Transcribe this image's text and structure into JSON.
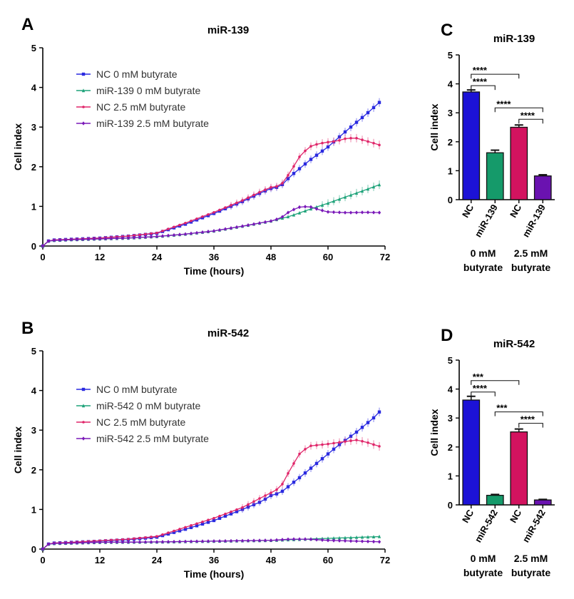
{
  "colors": {
    "nc0": "#2a2ae0",
    "mir0": "#1fa37a",
    "nc25": "#e0266a",
    "mir25": "#7a18b8",
    "bar_nc0": "#1c12d6",
    "bar_mir0": "#159a6a",
    "bar_nc25": "#d3135f",
    "bar_mir25": "#6a12b0"
  },
  "panels": {
    "A": {
      "letter": "A"
    },
    "B": {
      "letter": "B"
    },
    "C": {
      "letter": "C"
    },
    "D": {
      "letter": "D"
    }
  },
  "chart_data": [
    {
      "id": "A",
      "type": "line",
      "title": "miR-139",
      "xlabel": "Time (hours)",
      "ylabel": "Cell index",
      "xlim": [
        0,
        72
      ],
      "ylim": [
        0,
        5
      ],
      "xticks": [
        0,
        12,
        24,
        36,
        48,
        60,
        72
      ],
      "yticks": [
        0,
        1,
        2,
        3,
        4,
        5
      ],
      "legend": "top-left",
      "series": [
        {
          "name": "NC 0 mM butyrate",
          "color_key": "nc0",
          "marker": "square",
          "points": [
            [
              0,
              0
            ],
            [
              1,
              0.12
            ],
            [
              2,
              0.15
            ],
            [
              6,
              0.17
            ],
            [
              12,
              0.2
            ],
            [
              18,
              0.25
            ],
            [
              24,
              0.32
            ],
            [
              30,
              0.55
            ],
            [
              36,
              0.82
            ],
            [
              42,
              1.12
            ],
            [
              46,
              1.35
            ],
            [
              48,
              1.45
            ],
            [
              50,
              1.5
            ],
            [
              52,
              1.75
            ],
            [
              56,
              2.15
            ],
            [
              60,
              2.5
            ],
            [
              64,
              2.92
            ],
            [
              68,
              3.32
            ],
            [
              72,
              3.75
            ]
          ]
        },
        {
          "name": "miR-139 0 mM butyrate",
          "color_key": "mir0",
          "marker": "triangle",
          "points": [
            [
              0,
              0
            ],
            [
              1,
              0.12
            ],
            [
              2,
              0.14
            ],
            [
              6,
              0.16
            ],
            [
              12,
              0.18
            ],
            [
              18,
              0.2
            ],
            [
              24,
              0.24
            ],
            [
              30,
              0.3
            ],
            [
              36,
              0.38
            ],
            [
              42,
              0.5
            ],
            [
              48,
              0.63
            ],
            [
              52,
              0.75
            ],
            [
              56,
              0.92
            ],
            [
              60,
              1.08
            ],
            [
              64,
              1.25
            ],
            [
              68,
              1.42
            ],
            [
              72,
              1.6
            ]
          ]
        },
        {
          "name": "NC 2.5 mM butyrate",
          "color_key": "nc25",
          "marker": "circle",
          "points": [
            [
              0,
              0
            ],
            [
              1,
              0.12
            ],
            [
              2,
              0.15
            ],
            [
              6,
              0.17
            ],
            [
              12,
              0.2
            ],
            [
              18,
              0.25
            ],
            [
              24,
              0.33
            ],
            [
              30,
              0.58
            ],
            [
              36,
              0.85
            ],
            [
              42,
              1.15
            ],
            [
              46,
              1.38
            ],
            [
              48,
              1.48
            ],
            [
              50,
              1.52
            ],
            [
              52,
              1.85
            ],
            [
              54,
              2.25
            ],
            [
              56,
              2.5
            ],
            [
              58,
              2.58
            ],
            [
              60,
              2.62
            ],
            [
              62,
              2.65
            ],
            [
              64,
              2.72
            ],
            [
              66,
              2.72
            ],
            [
              68,
              2.65
            ],
            [
              70,
              2.58
            ],
            [
              72,
              2.5
            ]
          ]
        },
        {
          "name": "miR-139 2.5 mM butyrate",
          "color_key": "mir25",
          "marker": "diamond",
          "points": [
            [
              0,
              0
            ],
            [
              1,
              0.12
            ],
            [
              2,
              0.14
            ],
            [
              6,
              0.16
            ],
            [
              12,
              0.18
            ],
            [
              18,
              0.2
            ],
            [
              24,
              0.24
            ],
            [
              30,
              0.3
            ],
            [
              36,
              0.38
            ],
            [
              42,
              0.5
            ],
            [
              48,
              0.63
            ],
            [
              50,
              0.7
            ],
            [
              52,
              0.88
            ],
            [
              54,
              0.98
            ],
            [
              56,
              1.0
            ],
            [
              58,
              0.92
            ],
            [
              60,
              0.86
            ],
            [
              64,
              0.84
            ],
            [
              68,
              0.85
            ],
            [
              72,
              0.84
            ]
          ]
        }
      ]
    },
    {
      "id": "B",
      "type": "line",
      "title": "miR-542",
      "xlabel": "Time (hours)",
      "ylabel": "Cell index",
      "xlim": [
        0,
        72
      ],
      "ylim": [
        0,
        5
      ],
      "xticks": [
        0,
        12,
        24,
        36,
        48,
        60,
        72
      ],
      "yticks": [
        0,
        1,
        2,
        3,
        4,
        5
      ],
      "legend": "top-left",
      "series": [
        {
          "name": "NC 0 mM butyrate",
          "color_key": "nc0",
          "marker": "square",
          "points": [
            [
              0,
              0
            ],
            [
              1,
              0.12
            ],
            [
              2,
              0.15
            ],
            [
              6,
              0.17
            ],
            [
              12,
              0.2
            ],
            [
              18,
              0.24
            ],
            [
              24,
              0.3
            ],
            [
              30,
              0.5
            ],
            [
              36,
              0.72
            ],
            [
              42,
              1.0
            ],
            [
              46,
              1.2
            ],
            [
              48,
              1.35
            ],
            [
              50,
              1.42
            ],
            [
              54,
              1.8
            ],
            [
              58,
              2.2
            ],
            [
              62,
              2.6
            ],
            [
              66,
              2.95
            ],
            [
              70,
              3.35
            ],
            [
              72,
              3.62
            ]
          ]
        },
        {
          "name": "miR-542 0 mM butyrate",
          "color_key": "mir0",
          "marker": "triangle",
          "points": [
            [
              0,
              0
            ],
            [
              1,
              0.12
            ],
            [
              2,
              0.14
            ],
            [
              12,
              0.17
            ],
            [
              24,
              0.18
            ],
            [
              36,
              0.2
            ],
            [
              48,
              0.22
            ],
            [
              60,
              0.27
            ],
            [
              72,
              0.32
            ]
          ]
        },
        {
          "name": "NC 2.5 mM butyrate",
          "color_key": "nc25",
          "marker": "circle",
          "points": [
            [
              0,
              0
            ],
            [
              1,
              0.12
            ],
            [
              2,
              0.15
            ],
            [
              6,
              0.17
            ],
            [
              12,
              0.21
            ],
            [
              18,
              0.25
            ],
            [
              24,
              0.32
            ],
            [
              30,
              0.55
            ],
            [
              36,
              0.78
            ],
            [
              42,
              1.05
            ],
            [
              46,
              1.3
            ],
            [
              48,
              1.42
            ],
            [
              50,
              1.55
            ],
            [
              52,
              2.0
            ],
            [
              54,
              2.4
            ],
            [
              56,
              2.6
            ],
            [
              60,
              2.65
            ],
            [
              64,
              2.72
            ],
            [
              66,
              2.75
            ],
            [
              68,
              2.7
            ],
            [
              70,
              2.62
            ],
            [
              72,
              2.55
            ]
          ]
        },
        {
          "name": "miR-542 2.5 mM butyrate",
          "color_key": "mir25",
          "marker": "diamond",
          "points": [
            [
              0,
              0
            ],
            [
              1,
              0.12
            ],
            [
              2,
              0.14
            ],
            [
              12,
              0.17
            ],
            [
              24,
              0.18
            ],
            [
              36,
              0.2
            ],
            [
              48,
              0.22
            ],
            [
              52,
              0.25
            ],
            [
              56,
              0.25
            ],
            [
              60,
              0.22
            ],
            [
              66,
              0.2
            ],
            [
              72,
              0.18
            ]
          ]
        }
      ]
    },
    {
      "id": "C",
      "type": "bar",
      "title": "miR-139",
      "ylabel": "Cell index",
      "ylim": [
        0,
        5
      ],
      "yticks": [
        0,
        1,
        2,
        3,
        4,
        5
      ],
      "categories": [
        "NC",
        "miR-139",
        "NC",
        "miR-139"
      ],
      "values": [
        3.72,
        1.62,
        2.5,
        0.82
      ],
      "errors": [
        0.07,
        0.09,
        0.08,
        0.04
      ],
      "color_keys": [
        "bar_nc0",
        "bar_mir0",
        "bar_nc25",
        "bar_mir25"
      ],
      "groups": [
        {
          "line1": "0 mM",
          "line2": "butyrate"
        },
        {
          "line1": "2.5 mM",
          "line2": "butyrate"
        }
      ],
      "significance": [
        {
          "from": 0,
          "to": 2,
          "label": "****"
        },
        {
          "from": 0,
          "to": 1,
          "label": "****"
        },
        {
          "from": 1,
          "to": 3,
          "label": "****"
        },
        {
          "from": 2,
          "to": 3,
          "label": "****"
        }
      ]
    },
    {
      "id": "D",
      "type": "bar",
      "title": "miR-542",
      "ylabel": "Cell index",
      "ylim": [
        0,
        5
      ],
      "yticks": [
        0,
        1,
        2,
        3,
        4,
        5
      ],
      "categories": [
        "NC",
        "miR-542",
        "NC",
        "miR-542"
      ],
      "values": [
        3.62,
        0.33,
        2.52,
        0.17
      ],
      "errors": [
        0.13,
        0.03,
        0.1,
        0.02
      ],
      "color_keys": [
        "bar_nc0",
        "bar_mir0",
        "bar_nc25",
        "bar_mir25"
      ],
      "groups": [
        {
          "line1": "0 mM",
          "line2": "butyrate"
        },
        {
          "line1": "2.5 mM",
          "line2": "butyrate"
        }
      ],
      "significance": [
        {
          "from": 0,
          "to": 2,
          "label": "***"
        },
        {
          "from": 0,
          "to": 1,
          "label": "****"
        },
        {
          "from": 1,
          "to": 3,
          "label": "***"
        },
        {
          "from": 2,
          "to": 3,
          "label": "****"
        }
      ]
    }
  ]
}
